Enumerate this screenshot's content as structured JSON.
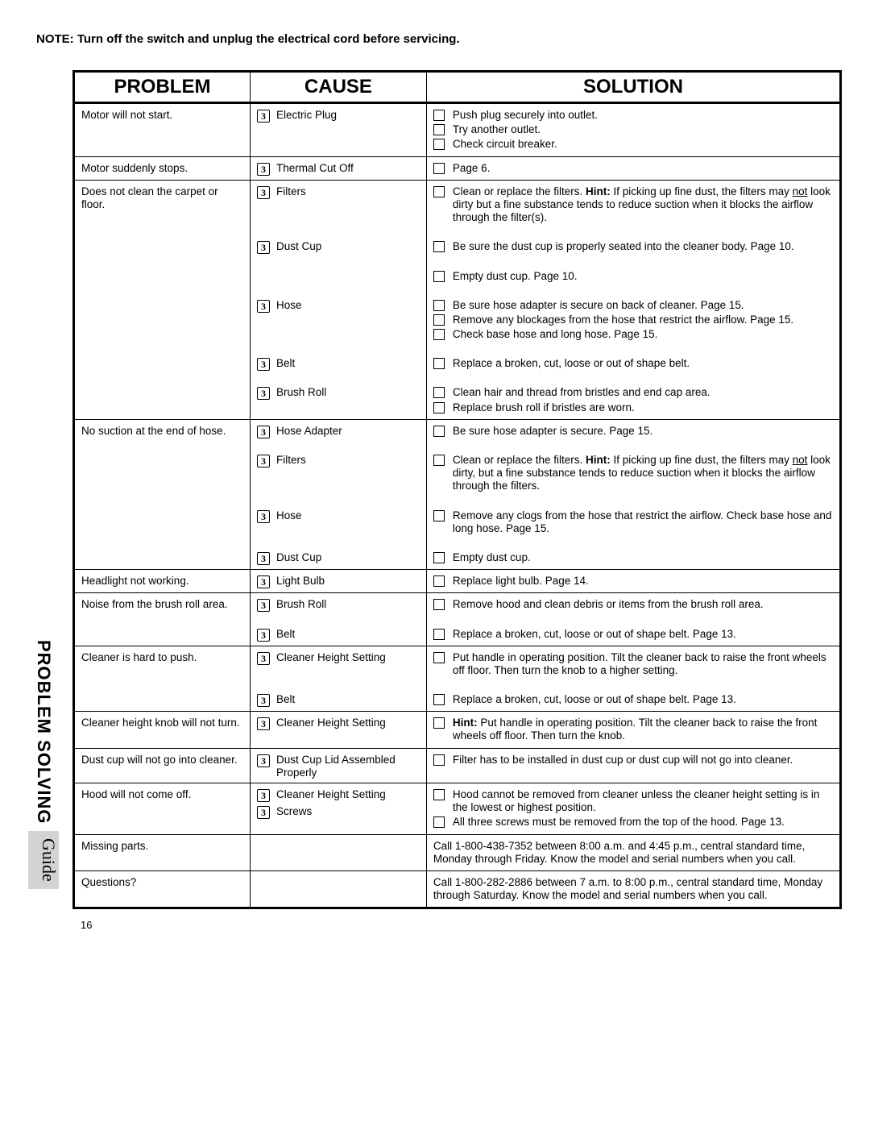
{
  "note": "NOTE: Turn off the switch and unplug the electrical cord before servicing.",
  "page_number": "16",
  "side_tab": {
    "bold": "PROBLEM SOLVING",
    "shaded": "Guide"
  },
  "headers": {
    "problem": "PROBLEM",
    "cause": "CAUSE",
    "solution": "SOLUTION"
  },
  "cause_glyph": "3",
  "rows": [
    {
      "sep": true,
      "problem": "Motor will not start.",
      "cause": "Electric Plug",
      "solutions": [
        {
          "check": true,
          "text": "Push plug securely into outlet."
        },
        {
          "check": true,
          "text": "Try another outlet."
        },
        {
          "check": true,
          "text": "Check circuit breaker."
        }
      ]
    },
    {
      "sep": true,
      "problem": "Motor suddenly stops.",
      "cause": "Thermal Cut Off",
      "solutions": [
        {
          "check": true,
          "text": "Page 6."
        }
      ]
    },
    {
      "sep": true,
      "problem": "Does not clean the carpet or floor.",
      "cause": "Filters",
      "solutions": [
        {
          "check": true,
          "html": "Clean or replace the filters. <span class='bold'>Hint:</span> If picking up fine dust, the filters may <span class='underline'>not</span> look dirty but a fine substance tends to reduce suction when it blocks the airflow through the filter(s)."
        }
      ]
    },
    {
      "spacer": true,
      "cause": "Dust Cup",
      "solutions": [
        {
          "check": true,
          "text": "Be sure the dust cup is properly seated into the cleaner body.  Page 10."
        }
      ]
    },
    {
      "spacer": true,
      "solutions": [
        {
          "check": true,
          "text": "Empty dust cup. Page 10."
        }
      ]
    },
    {
      "spacer": true,
      "cause": "Hose",
      "solutions": [
        {
          "check": true,
          "text": "Be sure hose adapter is secure on back of cleaner. Page 15."
        },
        {
          "check": true,
          "text": "Remove any blockages from the hose that restrict the airflow. Page 15."
        },
        {
          "check": true,
          "text": "Check base hose and long hose.  Page 15."
        }
      ]
    },
    {
      "spacer": true,
      "cause": "Belt",
      "solutions": [
        {
          "check": true,
          "text": "Replace a  broken, cut, loose or out of shape belt."
        }
      ]
    },
    {
      "spacer": true,
      "cause": "Brush Roll",
      "solutions": [
        {
          "check": true,
          "text": "Clean hair and thread from bristles and end cap area."
        },
        {
          "check": true,
          "text": "Replace brush roll if bristles are worn."
        }
      ]
    },
    {
      "sep": true,
      "problem": "No suction at the end of hose.",
      "cause": "Hose Adapter",
      "solutions": [
        {
          "check": true,
          "text": "Be sure hose adapter is secure. Page 15."
        }
      ]
    },
    {
      "spacer": true,
      "cause": "Filters",
      "solutions": [
        {
          "check": true,
          "html": "Clean or replace the filters.  <span class='bold'>Hint:</span>  If picking up fine dust, the filters may <span class='underline'>not</span> look dirty, but a fine substance tends to reduce suction when it blocks the airflow through the filters."
        }
      ]
    },
    {
      "spacer": true,
      "cause": "Hose",
      "solutions": [
        {
          "check": true,
          "text": "Remove any clogs from the hose that restrict the airflow.  Check base hose and long hose. Page 15."
        }
      ]
    },
    {
      "spacer": true,
      "cause": "Dust Cup",
      "solutions": [
        {
          "check": true,
          "text": "Empty dust cup."
        }
      ]
    },
    {
      "sep": true,
      "problem": "Headlight not working.",
      "cause": "Light Bulb",
      "solutions": [
        {
          "check": true,
          "text": "Replace light bulb. Page 14."
        }
      ]
    },
    {
      "sep": true,
      "problem": "Noise from the brush roll area.",
      "cause": "Brush Roll",
      "solutions": [
        {
          "check": true,
          "text": "Remove hood and clean debris or items from the brush roll area."
        }
      ]
    },
    {
      "spacer": true,
      "cause": "Belt",
      "solutions": [
        {
          "check": true,
          "text": "Replace a broken, cut, loose or out of shape belt. Page 13."
        }
      ]
    },
    {
      "sep": true,
      "problem": "Cleaner is hard to push.",
      "cause": "Cleaner Height Setting",
      "solutions": [
        {
          "check": true,
          "text": "Put handle in operating position.  Tilt the cleaner back to raise the front wheels off floor. Then turn the knob to a higher setting."
        }
      ]
    },
    {
      "spacer": true,
      "cause": "Belt",
      "solutions": [
        {
          "check": true,
          "text": "Replace a broken, cut, loose or out of shape belt. Page 13."
        }
      ]
    },
    {
      "sep": true,
      "problem": "Cleaner height knob will not turn.",
      "cause": "Cleaner Height Setting",
      "solutions": [
        {
          "check": true,
          "html": "<span class='bold'>Hint:</span>  Put handle in operating position.  Tilt the cleaner back to raise the front wheels off floor. Then turn the knob."
        }
      ]
    },
    {
      "sep": true,
      "problem": "Dust cup will not go into cleaner.",
      "cause": "Dust Cup Lid  Assembled Properly",
      "solutions": [
        {
          "check": true,
          "text": "Filter has to be installed in dust cup or dust cup will not go into cleaner."
        }
      ]
    },
    {
      "sep": true,
      "problem": "Hood will not come off.",
      "cause": "Cleaner Height Setting",
      "cause2": "Screws",
      "solutions": [
        {
          "check": true,
          "text": "Hood cannot be removed from cleaner unless the cleaner height setting is in the lowest or highest position."
        },
        {
          "check": true,
          "text": "All three screws must be removed from the top of the hood. Page 13."
        }
      ]
    },
    {
      "sep": true,
      "problem": "Missing parts.",
      "solutions": [
        {
          "check": false,
          "text": "Call 1-800-438-7352 between 8:00 a.m. and 4:45 p.m., central standard time, Monday through Friday. Know the model and serial numbers when you call."
        }
      ]
    },
    {
      "sep": true,
      "problem": "Questions?",
      "solutions": [
        {
          "check": false,
          "text": "Call 1-800-282-2886 between 7 a.m. to 8:00 p.m., central standard time, Monday through Saturday. Know the model and  serial numbers when you call."
        }
      ]
    }
  ]
}
